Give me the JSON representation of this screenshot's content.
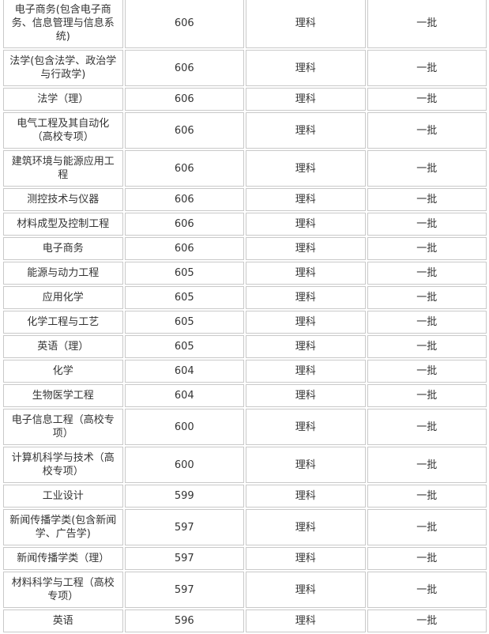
{
  "rows": [
    [
      "电子商务(包含电子商务、信息管理与信息系统)",
      "606",
      "理科",
      "一批"
    ],
    [
      "法学(包含法学、政治学与行政学)",
      "606",
      "理科",
      "一批"
    ],
    [
      "法学（理）",
      "606",
      "理科",
      "一批"
    ],
    [
      "电气工程及其自动化（高校专项）",
      "606",
      "理科",
      "一批"
    ],
    [
      "建筑环境与能源应用工程",
      "606",
      "理科",
      "一批"
    ],
    [
      "测控技术与仪器",
      "606",
      "理科",
      "一批"
    ],
    [
      "材料成型及控制工程",
      "606",
      "理科",
      "一批"
    ],
    [
      "电子商务",
      "606",
      "理科",
      "一批"
    ],
    [
      "能源与动力工程",
      "605",
      "理科",
      "一批"
    ],
    [
      "应用化学",
      "605",
      "理科",
      "一批"
    ],
    [
      "化学工程与工艺",
      "605",
      "理科",
      "一批"
    ],
    [
      "英语（理）",
      "605",
      "理科",
      "一批"
    ],
    [
      "化学",
      "604",
      "理科",
      "一批"
    ],
    [
      "生物医学工程",
      "604",
      "理科",
      "一批"
    ],
    [
      "电子信息工程（高校专项）",
      "600",
      "理科",
      "一批"
    ],
    [
      "计算机科学与技术（高校专项）",
      "600",
      "理科",
      "一批"
    ],
    [
      "工业设计",
      "599",
      "理科",
      "一批"
    ],
    [
      "新闻传播学类(包含新闻学、广告学)",
      "597",
      "理科",
      "一批"
    ],
    [
      "新闻传播学类（理）",
      "597",
      "理科",
      "一批"
    ],
    [
      "材料科学与工程（高校专项）",
      "597",
      "理科",
      "一批"
    ],
    [
      "英语",
      "596",
      "理科",
      "一批"
    ]
  ]
}
